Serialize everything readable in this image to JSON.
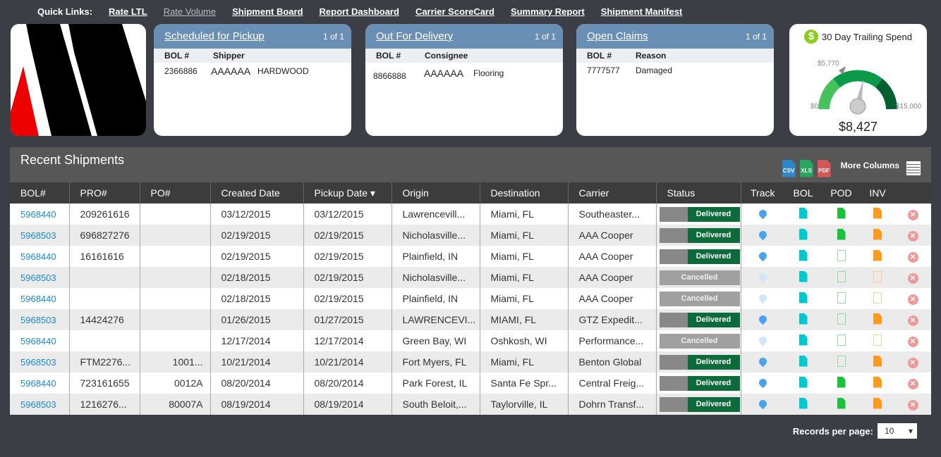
{
  "quick_links": {
    "label": "Quick Links:",
    "items": [
      "Rate LTL",
      "Rate Volume",
      "Shipment Board",
      "Report Dashboard",
      "Carrier ScoreCard",
      "Summary Report",
      "Shipment Manifest"
    ]
  },
  "cards": [
    {
      "title": "Scheduled for Pickup",
      "pager": "1 of 1",
      "cols": [
        "BOL #",
        "Shipper"
      ],
      "row": [
        "2366886",
        "AAAAAA",
        "HARDWOOD"
      ]
    },
    {
      "title": "Out For Delivery",
      "pager": "1 of 1",
      "cols": [
        "BOL #",
        "Consignee"
      ],
      "row": [
        "8866888",
        "AAAAAA",
        "Flooring"
      ]
    },
    {
      "title": "Open Claims",
      "pager": "1 of 1",
      "cols": [
        "BOL #",
        "Reason"
      ],
      "row": [
        "7777577",
        "Damaged"
      ]
    }
  ],
  "gauge": {
    "title": "30 Day Trailing Spend",
    "min": "$0",
    "max": "$15,000",
    "marker": "$5,770",
    "value": "$8,427",
    "value_num": 8427,
    "max_num": 15000,
    "marker_num": 5770
  },
  "panel": {
    "title": "Recent Shipments",
    "exports": [
      "CSV",
      "XLS",
      "PDF"
    ],
    "more_columns": "More Columns"
  },
  "columns": [
    "BOL#",
    "PRO#",
    "PO#",
    "Created Date",
    "Pickup Date",
    "Origin",
    "Destination",
    "Carrier",
    "Status",
    "Track",
    "BOL",
    "POD",
    "INV",
    ""
  ],
  "sort_column": "Pickup Date",
  "rows": [
    {
      "bol": "5968440",
      "pro": "209261616",
      "po": "",
      "created": "03/12/2015",
      "pickup": "03/12/2015",
      "origin": "Lawrencevill...",
      "dest": "Miami, FL",
      "carrier": "Southeaster...",
      "status": "Delivered",
      "pod": true,
      "inv": true
    },
    {
      "bol": "5968503",
      "pro": "696827276",
      "po": "",
      "created": "02/19/2015",
      "pickup": "02/19/2015",
      "origin": "Nicholasville...",
      "dest": "Miami, FL",
      "carrier": "AAA Cooper",
      "status": "Delivered",
      "pod": true,
      "inv": true
    },
    {
      "bol": "5968440",
      "pro": "16161616",
      "po": "",
      "created": "02/19/2015",
      "pickup": "02/19/2015",
      "origin": "Plainfield, IN",
      "dest": "Miami, FL",
      "carrier": "AAA Cooper",
      "status": "Delivered",
      "pod": false,
      "inv": true
    },
    {
      "bol": "5968503",
      "pro": "",
      "po": "",
      "created": "02/18/2015",
      "pickup": "02/19/2015",
      "origin": "Nicholasville...",
      "dest": "Miami, FL",
      "carrier": "AAA Cooper",
      "status": "Cancelled",
      "pod": false,
      "inv": false
    },
    {
      "bol": "5968440",
      "pro": "",
      "po": "",
      "created": "02/18/2015",
      "pickup": "02/19/2015",
      "origin": "Plainfield, IN",
      "dest": "Miami, FL",
      "carrier": "AAA Cooper",
      "status": "Cancelled",
      "pod": false,
      "inv": false
    },
    {
      "bol": "5968503",
      "pro": "14424276",
      "po": "",
      "created": "01/26/2015",
      "pickup": "01/27/2015",
      "origin": "LAWRENCEVI...",
      "dest": "MIAMI, FL",
      "carrier": "GTZ Expedit...",
      "status": "Delivered",
      "pod": false,
      "inv": true
    },
    {
      "bol": "5968440",
      "pro": "",
      "po": "",
      "created": "12/17/2014",
      "pickup": "12/17/2014",
      "origin": "Green Bay, WI",
      "dest": "Oshkosh, WI",
      "carrier": "Performance...",
      "status": "Cancelled",
      "pod": false,
      "inv": false
    },
    {
      "bol": "5968503",
      "pro": "FTM2276...",
      "po": "1001...",
      "created": "10/21/2014",
      "pickup": "10/21/2014",
      "origin": "Fort Myers, FL",
      "dest": "Miami, FL",
      "carrier": "Benton Global",
      "status": "Delivered",
      "pod": false,
      "inv": true
    },
    {
      "bol": "5968440",
      "pro": "723161655",
      "po": "0012A",
      "created": "08/20/2014",
      "pickup": "08/20/2014",
      "origin": "Park Forest, IL",
      "dest": "Santa Fe Spr...",
      "carrier": "Central Freig...",
      "status": "Delivered",
      "pod": true,
      "inv": true
    },
    {
      "bol": "5968503",
      "pro": "1216276...",
      "po": "80007A",
      "created": "08/19/2014",
      "pickup": "08/19/2014",
      "origin": "South Beloit,...",
      "dest": "Taylorville, IL",
      "carrier": "Dohrn Transf...",
      "status": "Delivered",
      "pod": true,
      "inv": true
    }
  ],
  "footer": {
    "label": "Records per page:",
    "value": "10"
  },
  "colors": {
    "card_header": "#6a8fb5",
    "delivered": "#0c6b3a",
    "bol_doc": "#00c8d0",
    "pod_doc": "#19c43c",
    "inv_doc": "#ff9a1e",
    "link": "#1a8ad0"
  }
}
